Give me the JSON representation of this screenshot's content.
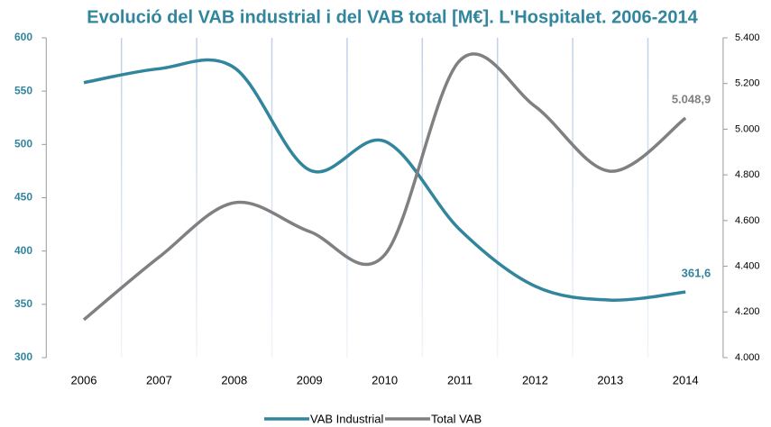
{
  "chart_data": {
    "type": "line",
    "title": "Evolució del VAB industrial i del VAB total [M€]. L'Hospitalet. 2006-2014",
    "categories": [
      "2006",
      "2007",
      "2008",
      "2009",
      "2010",
      "2011",
      "2012",
      "2013",
      "2014"
    ],
    "series": [
      {
        "name": "VAB Industrial",
        "color": "#31859c",
        "values": [
          558,
          571,
          572,
          476,
          503,
          420,
          367,
          354,
          361.6
        ],
        "value_labels": [
          null,
          null,
          null,
          null,
          null,
          null,
          null,
          null,
          "361,6"
        ]
      },
      {
        "name": "Total VAB",
        "color": "#808080",
        "axis": "y2",
        "values": [
          4166,
          4440,
          4678,
          4552,
          4450,
          5301,
          5100,
          4816,
          5048.9
        ],
        "value_labels": [
          null,
          null,
          null,
          null,
          null,
          null,
          null,
          null,
          "5.048,9"
        ]
      }
    ],
    "ylim": [
      300,
      600
    ],
    "yticks": [
      300,
      350,
      400,
      450,
      500,
      550,
      600
    ],
    "y2lim": [
      4000,
      5400
    ],
    "y2ticks": [
      {
        "value": 4000,
        "label": "4.000"
      },
      {
        "value": 4200,
        "label": "4.200"
      },
      {
        "value": 4400,
        "label": "4.400"
      },
      {
        "value": 4600,
        "label": "4.600"
      },
      {
        "value": 4800,
        "label": "4.800"
      },
      {
        "value": 5000,
        "label": "5.000"
      },
      {
        "value": 5200,
        "label": "5.200"
      },
      {
        "value": 5400,
        "label": "5.400"
      }
    ],
    "legend": "bottom"
  }
}
